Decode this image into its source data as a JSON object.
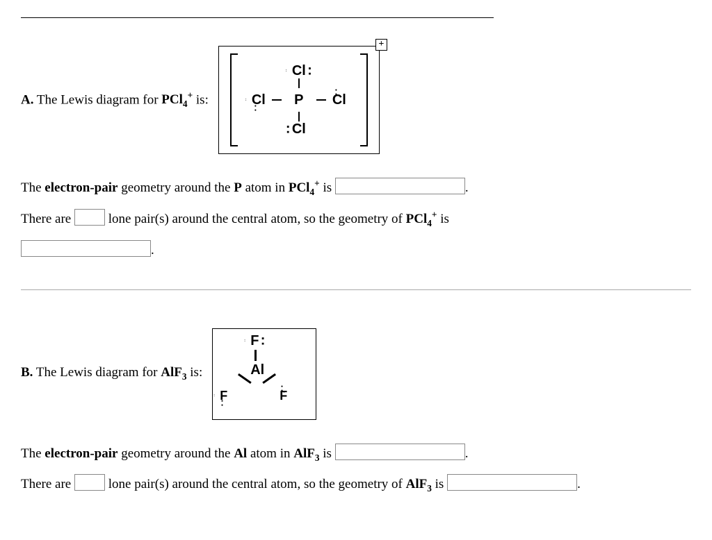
{
  "partA": {
    "label": "A.",
    "caption_prefix": "The Lewis diagram for ",
    "formula_base": "PCl",
    "formula_sub": "4",
    "formula_sup": "+",
    "caption_suffix": " is:",
    "q1_pre": "The ",
    "q1_bold": "electron-pair",
    "q1_mid": " geometry around the ",
    "q1_atom": "P",
    "q1_mid2": " atom in ",
    "q1_post": " is ",
    "q2_pre": "There are ",
    "q2_mid": " lone pair(s) around the central atom, so the geometry of ",
    "q2_post": " is",
    "diagram": {
      "central": "P",
      "ligand": "Cl",
      "charge": "+"
    }
  },
  "partB": {
    "label": "B.",
    "caption_prefix": "The Lewis diagram for ",
    "formula_base": "AlF",
    "formula_sub": "3",
    "caption_suffix": " is:",
    "q1_pre": "The ",
    "q1_bold": "electron-pair",
    "q1_mid": " geometry around the ",
    "q1_atom": "Al",
    "q1_mid2": " atom in ",
    "q1_post": " is ",
    "q2_pre": "There are ",
    "q2_mid": " lone pair(s) around the central atom, so the geometry of ",
    "q2_post": " is ",
    "diagram": {
      "central": "Al",
      "ligand": "F"
    }
  }
}
